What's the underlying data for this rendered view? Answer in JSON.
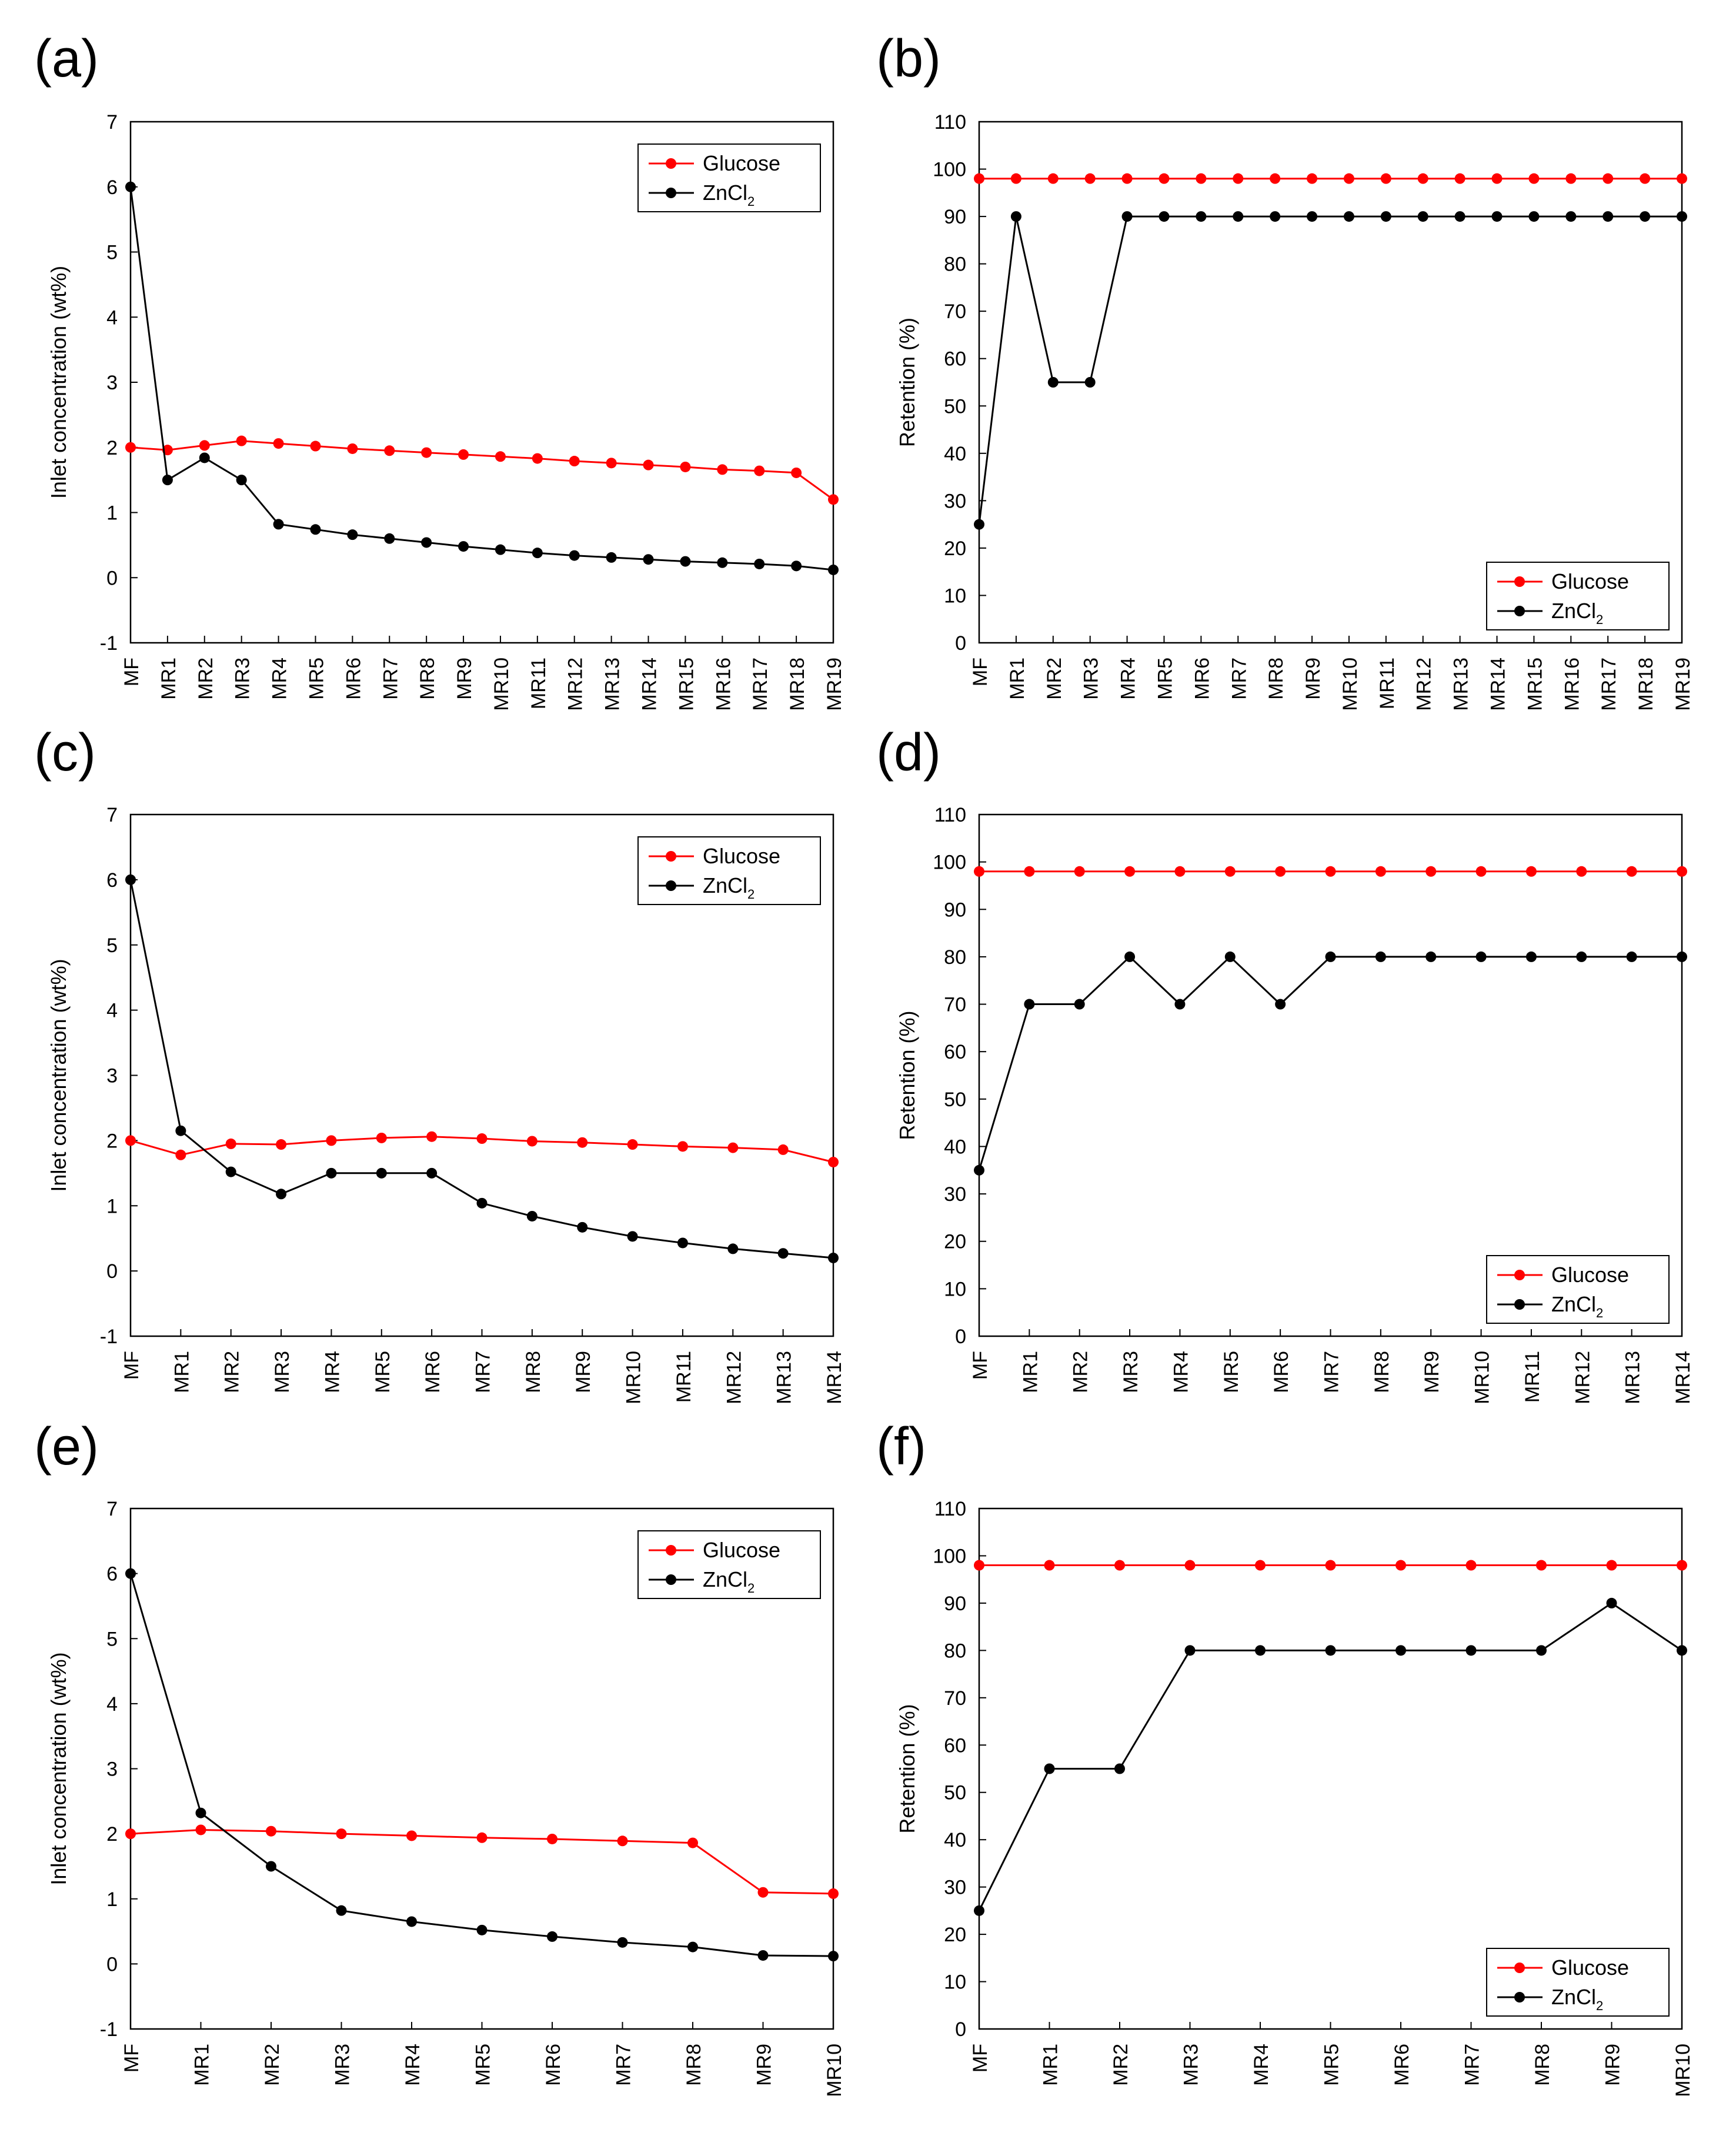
{
  "series_styles": [
    {
      "legend_key": "glucose",
      "color": "#ff0000",
      "marker": "circle"
    },
    {
      "legend_key": "zncl2",
      "color": "#000000",
      "marker": "circle"
    }
  ],
  "legend_labels": {
    "glucose": "Glucose",
    "zncl2_main": "ZnCl",
    "zncl2_sub": "2"
  },
  "chart_data": [
    {
      "panel": "(a)",
      "type": "line",
      "ylabel": "Inlet concentration (wt%)",
      "ylim": [
        -1,
        7
      ],
      "yticks": [
        -1,
        0,
        1,
        2,
        3,
        4,
        5,
        6,
        7
      ],
      "categories": [
        "MF",
        "MR1",
        "MR2",
        "MR3",
        "MR4",
        "MR5",
        "MR6",
        "MR7",
        "MR8",
        "MR9",
        "MR10",
        "MR11",
        "MR12",
        "MR13",
        "MR14",
        "MR15",
        "MR16",
        "MR17",
        "MR18",
        "MR19"
      ],
      "legend": "top-right",
      "series": [
        {
          "name": "Glucose",
          "values": [
            2.0,
            1.96,
            2.03,
            2.1,
            2.06,
            2.02,
            1.98,
            1.95,
            1.92,
            1.89,
            1.86,
            1.83,
            1.79,
            1.76,
            1.73,
            1.7,
            1.66,
            1.64,
            1.61,
            1.2
          ]
        },
        {
          "name": "ZnCl2",
          "values": [
            6.0,
            1.5,
            1.84,
            1.5,
            0.82,
            0.74,
            0.66,
            0.6,
            0.54,
            0.48,
            0.43,
            0.38,
            0.34,
            0.31,
            0.28,
            0.25,
            0.23,
            0.21,
            0.18,
            0.12
          ]
        }
      ]
    },
    {
      "panel": "(b)",
      "type": "line",
      "ylabel": "Retention (%)",
      "ylim": [
        0,
        110
      ],
      "yticks": [
        0,
        10,
        20,
        30,
        40,
        50,
        60,
        70,
        80,
        90,
        100,
        110
      ],
      "categories": [
        "MF",
        "MR1",
        "MR2",
        "MR3",
        "MR4",
        "MR5",
        "MR6",
        "MR7",
        "MR8",
        "MR9",
        "MR10",
        "MR11",
        "MR12",
        "MR13",
        "MR14",
        "MR15",
        "MR16",
        "MR17",
        "MR18",
        "MR19"
      ],
      "legend": "bottom-right",
      "series": [
        {
          "name": "Glucose",
          "values": [
            98,
            98,
            98,
            98,
            98,
            98,
            98,
            98,
            98,
            98,
            98,
            98,
            98,
            98,
            98,
            98,
            98,
            98,
            98,
            98
          ]
        },
        {
          "name": "ZnCl2",
          "values": [
            25,
            90,
            55,
            55,
            90,
            90,
            90,
            90,
            90,
            90,
            90,
            90,
            90,
            90,
            90,
            90,
            90,
            90,
            90,
            90
          ]
        }
      ]
    },
    {
      "panel": "(c)",
      "type": "line",
      "ylabel": "Inlet concentration (wt%)",
      "ylim": [
        -1,
        7
      ],
      "yticks": [
        -1,
        0,
        1,
        2,
        3,
        4,
        5,
        6,
        7
      ],
      "categories": [
        "MF",
        "MR1",
        "MR2",
        "MR3",
        "MR4",
        "MR5",
        "MR6",
        "MR7",
        "MR8",
        "MR9",
        "MR10",
        "MR11",
        "MR12",
        "MR13",
        "MR14"
      ],
      "legend": "top-right",
      "series": [
        {
          "name": "Glucose",
          "values": [
            2.0,
            1.78,
            1.95,
            1.94,
            2.0,
            2.04,
            2.06,
            2.03,
            1.99,
            1.97,
            1.94,
            1.91,
            1.89,
            1.86,
            1.67
          ]
        },
        {
          "name": "ZnCl2",
          "values": [
            6.0,
            2.15,
            1.52,
            1.18,
            1.5,
            1.5,
            1.5,
            1.04,
            0.84,
            0.67,
            0.53,
            0.43,
            0.34,
            0.27,
            0.2
          ]
        }
      ]
    },
    {
      "panel": "(d)",
      "type": "line",
      "ylabel": "Retention (%)",
      "ylim": [
        0,
        110
      ],
      "yticks": [
        0,
        10,
        20,
        30,
        40,
        50,
        60,
        70,
        80,
        90,
        100,
        110
      ],
      "categories": [
        "MF",
        "MR1",
        "MR2",
        "MR3",
        "MR4",
        "MR5",
        "MR6",
        "MR7",
        "MR8",
        "MR9",
        "MR10",
        "MR11",
        "MR12",
        "MR13",
        "MR14"
      ],
      "legend": "bottom-right",
      "series": [
        {
          "name": "Glucose",
          "values": [
            98,
            98,
            98,
            98,
            98,
            98,
            98,
            98,
            98,
            98,
            98,
            98,
            98,
            98,
            98
          ]
        },
        {
          "name": "ZnCl2",
          "values": [
            35,
            70,
            70,
            80,
            70,
            80,
            70,
            80,
            80,
            80,
            80,
            80,
            80,
            80,
            80
          ]
        }
      ]
    },
    {
      "panel": "(e)",
      "type": "line",
      "ylabel": "Inlet concentration (wt%)",
      "ylim": [
        -1,
        7
      ],
      "yticks": [
        -1,
        0,
        1,
        2,
        3,
        4,
        5,
        6,
        7
      ],
      "categories": [
        "MF",
        "MR1",
        "MR2",
        "MR3",
        "MR4",
        "MR5",
        "MR6",
        "MR7",
        "MR8",
        "MR9",
        "MR10"
      ],
      "legend": "top-right",
      "series": [
        {
          "name": "Glucose",
          "values": [
            2.0,
            2.06,
            2.04,
            2.0,
            1.97,
            1.94,
            1.92,
            1.89,
            1.86,
            1.1,
            1.08
          ]
        },
        {
          "name": "ZnCl2",
          "values": [
            6.0,
            2.32,
            1.5,
            0.82,
            0.65,
            0.52,
            0.42,
            0.33,
            0.26,
            0.13,
            0.12
          ]
        }
      ]
    },
    {
      "panel": "(f)",
      "type": "line",
      "ylabel": "Retention (%)",
      "ylim": [
        0,
        110
      ],
      "yticks": [
        0,
        10,
        20,
        30,
        40,
        50,
        60,
        70,
        80,
        90,
        100,
        110
      ],
      "categories": [
        "MF",
        "MR1",
        "MR2",
        "MR3",
        "MR4",
        "MR5",
        "MR6",
        "MR7",
        "MR8",
        "MR9",
        "MR10"
      ],
      "legend": "bottom-right",
      "series": [
        {
          "name": "Glucose",
          "values": [
            98,
            98,
            98,
            98,
            98,
            98,
            98,
            98,
            98,
            98,
            98
          ]
        },
        {
          "name": "ZnCl2",
          "values": [
            25,
            55,
            55,
            80,
            80,
            80,
            80,
            80,
            80,
            90,
            80
          ]
        }
      ]
    }
  ]
}
